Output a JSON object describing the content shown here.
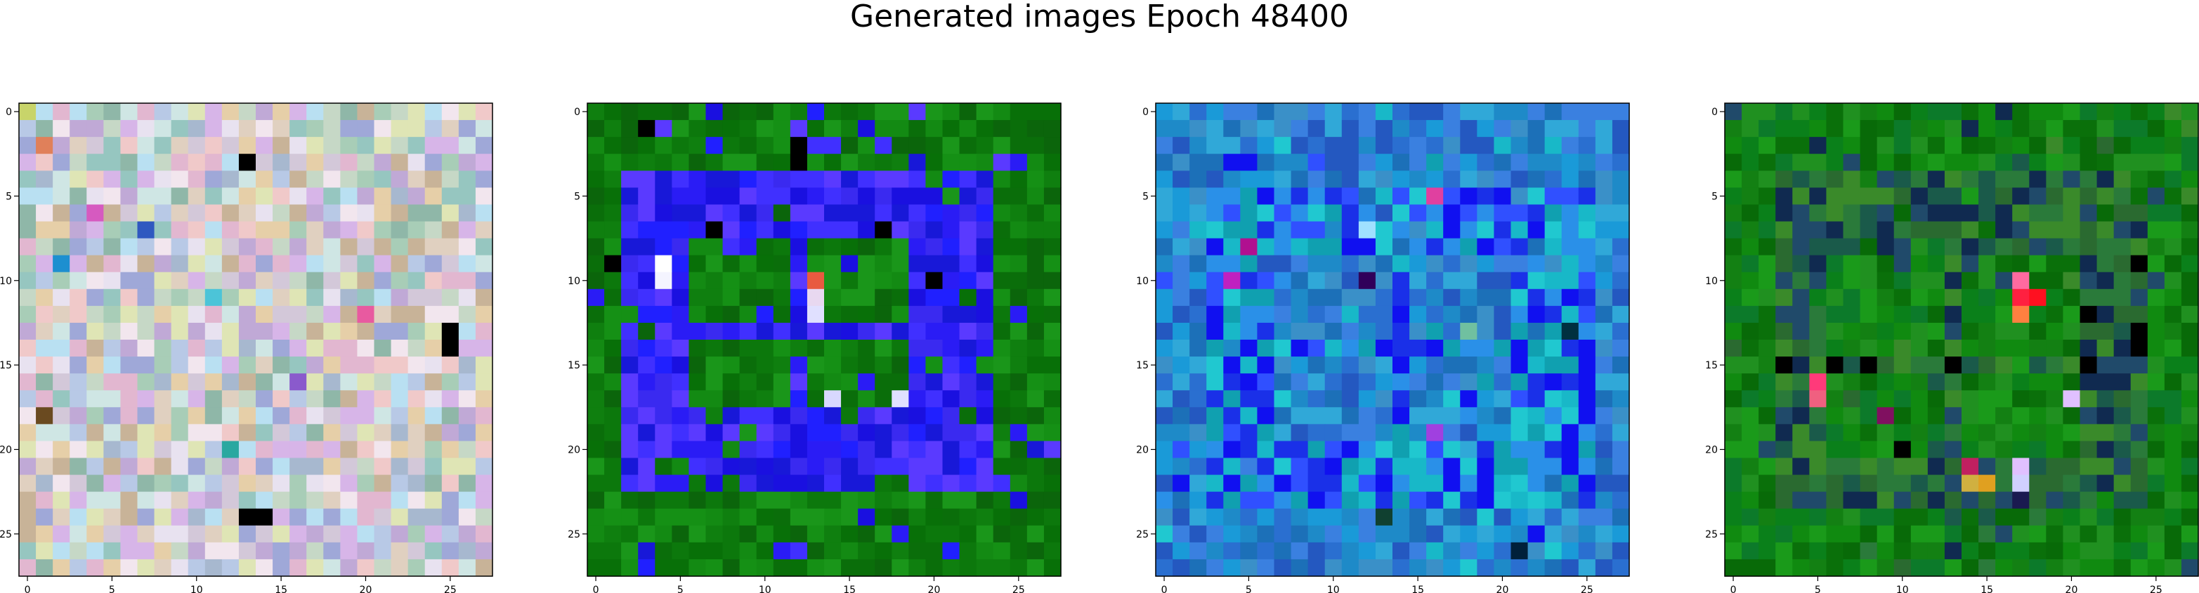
{
  "title": "Generated images Epoch 48400",
  "chart_data": [
    {
      "type": "heatmap",
      "description_free": true,
      "grid": false,
      "xlim": [
        0,
        27
      ],
      "ylim": [
        0,
        27
      ],
      "xticks": [
        0,
        5,
        10,
        15,
        20,
        25
      ],
      "yticks": [
        0,
        5,
        10,
        15,
        20,
        25
      ],
      "palette": [
        "#d3c8d9",
        "#c6d8c6",
        "#e0d0c0",
        "#b8c9e6",
        "#e2b7d0",
        "#cfe6e4",
        "#a8cdb7",
        "#e8e2f0",
        "#c0a9d6",
        "#dfe5b5",
        "#a7b8cf",
        "#f0c9c9",
        "#96c6c0",
        "#d7b5e8",
        "#b9e0f2",
        "#e6cfa8",
        "#8fb7a8",
        "#f2e6ee",
        "#c8b398",
        "#9fa8d8"
      ],
      "accents": [
        {
          "r": 0,
          "c": 0,
          "color": "#c8d46a"
        },
        {
          "r": 3,
          "c": 13,
          "color": "#000000"
        },
        {
          "r": 14,
          "c": 25,
          "color": "#000000"
        },
        {
          "r": 13,
          "c": 25,
          "color": "#000000"
        },
        {
          "r": 24,
          "c": 13,
          "color": "#000000"
        },
        {
          "r": 24,
          "c": 14,
          "color": "#000000"
        },
        {
          "r": 7,
          "c": 7,
          "color": "#2f58c0"
        },
        {
          "r": 9,
          "c": 2,
          "color": "#1d8fd0"
        },
        {
          "r": 6,
          "c": 4,
          "color": "#d65ac0"
        },
        {
          "r": 12,
          "c": 20,
          "color": "#e85aa0"
        },
        {
          "r": 18,
          "c": 1,
          "color": "#6a4a20"
        },
        {
          "r": 2,
          "c": 1,
          "color": "#e0805a"
        },
        {
          "r": 16,
          "c": 16,
          "color": "#8a5acc"
        },
        {
          "r": 11,
          "c": 11,
          "color": "#4cc4d8"
        },
        {
          "r": 20,
          "c": 12,
          "color": "#2aa8a0"
        }
      ]
    },
    {
      "type": "heatmap",
      "grid": false,
      "xlim": [
        0,
        27
      ],
      "ylim": [
        0,
        27
      ],
      "xticks": [
        0,
        5,
        10,
        15,
        20,
        25
      ],
      "yticks": [
        0,
        5,
        10,
        15,
        20,
        25
      ],
      "background": [
        "#0f7f0f",
        "#138a13",
        "#0a6e0a",
        "#1a961a",
        "#0c780c",
        "#087008",
        "#159015",
        "#0b650b"
      ],
      "foreground": [
        "#2020ff",
        "#3a2af0",
        "#1a10e0",
        "#4030ff",
        "#2a1cf5",
        "#5a3aff",
        "#1818d8"
      ],
      "frame_rows": [
        4,
        22
      ],
      "frame_cols": [
        2,
        23
      ],
      "hole_rows": [
        8,
        17
      ],
      "hole_cols": [
        6,
        18
      ],
      "accents": [
        {
          "r": 1,
          "c": 3,
          "color": "#000000"
        },
        {
          "r": 2,
          "c": 12,
          "color": "#000000"
        },
        {
          "r": 3,
          "c": 12,
          "color": "#000000"
        },
        {
          "r": 9,
          "c": 4,
          "color": "#ffffff"
        },
        {
          "r": 10,
          "c": 4,
          "color": "#f4f4ff"
        },
        {
          "r": 10,
          "c": 13,
          "color": "#e85a40"
        },
        {
          "r": 11,
          "c": 13,
          "color": "#e8d8f0"
        },
        {
          "r": 12,
          "c": 13,
          "color": "#e0e0ff"
        },
        {
          "r": 17,
          "c": 14,
          "color": "#d8d8ff"
        },
        {
          "r": 17,
          "c": 18,
          "color": "#e0e0ff"
        },
        {
          "r": 7,
          "c": 7,
          "color": "#000000"
        },
        {
          "r": 7,
          "c": 17,
          "color": "#000000"
        },
        {
          "r": 10,
          "c": 20,
          "color": "#000000"
        },
        {
          "r": 9,
          "c": 1,
          "color": "#000000"
        }
      ]
    },
    {
      "type": "heatmap",
      "grid": false,
      "xlim": [
        0,
        27
      ],
      "ylim": [
        0,
        27
      ],
      "xticks": [
        0,
        5,
        10,
        15,
        20,
        25
      ],
      "yticks": [
        0,
        5,
        10,
        15,
        20,
        25
      ],
      "background": [
        "#2a6fd0",
        "#1e8ac8",
        "#3a80e0",
        "#1a9ad8",
        "#2458c0",
        "#30a8d8",
        "#1c70b8",
        "#3a90c8"
      ],
      "foreground": [
        "#1010f0",
        "#18b8c8",
        "#20c8d0",
        "#1a30e8",
        "#2a90e8",
        "#10a0b0",
        "#3050ff"
      ],
      "frame_rows": [
        5,
        23
      ],
      "frame_cols": [
        3,
        25
      ],
      "hole_rows": [
        9,
        19
      ],
      "hole_cols": [
        7,
        20
      ],
      "accents": [
        {
          "r": 8,
          "c": 5,
          "color": "#b01090"
        },
        {
          "r": 10,
          "c": 4,
          "color": "#c020c0"
        },
        {
          "r": 5,
          "c": 16,
          "color": "#e040a0"
        },
        {
          "r": 19,
          "c": 16,
          "color": "#a040e0"
        },
        {
          "r": 13,
          "c": 18,
          "color": "#70c0a0"
        },
        {
          "r": 10,
          "c": 12,
          "color": "#30005a"
        },
        {
          "r": 24,
          "c": 13,
          "color": "#104030"
        },
        {
          "r": 26,
          "c": 21,
          "color": "#00203a"
        },
        {
          "r": 7,
          "c": 12,
          "color": "#a0e0ff"
        },
        {
          "r": 13,
          "c": 24,
          "color": "#003040"
        }
      ]
    },
    {
      "type": "heatmap",
      "grid": false,
      "xlim": [
        0,
        27
      ],
      "ylim": [
        0,
        27
      ],
      "xticks": [
        0,
        5,
        10,
        15,
        20,
        25
      ],
      "yticks": [
        0,
        5,
        10,
        15,
        20,
        25
      ],
      "background": [
        "#108a10",
        "#0a700a",
        "#1a9a1a",
        "#0c7a2a",
        "#138013",
        "#086a08",
        "#209020",
        "#0a801a"
      ],
      "foreground": [
        "#2a7a3a",
        "#1a5a4a",
        "#3a8a2a",
        "#204a6a",
        "#2a6a30",
        "#102a50"
      ],
      "frame_rows": [
        4,
        23
      ],
      "frame_cols": [
        3,
        24
      ],
      "hole_rows": [
        9,
        20
      ],
      "hole_cols": [
        6,
        20
      ],
      "accents": [
        {
          "r": 10,
          "c": 17,
          "color": "#ff6aa0"
        },
        {
          "r": 11,
          "c": 17,
          "color": "#ff2040"
        },
        {
          "r": 11,
          "c": 18,
          "color": "#ff1020"
        },
        {
          "r": 12,
          "c": 17,
          "color": "#ff8040"
        },
        {
          "r": 16,
          "c": 5,
          "color": "#ff3a7a"
        },
        {
          "r": 17,
          "c": 5,
          "color": "#f06080"
        },
        {
          "r": 22,
          "c": 15,
          "color": "#e0a020"
        },
        {
          "r": 21,
          "c": 14,
          "color": "#c02060"
        },
        {
          "r": 22,
          "c": 14,
          "color": "#d0b040"
        },
        {
          "r": 21,
          "c": 17,
          "color": "#e0c0ff"
        },
        {
          "r": 22,
          "c": 17,
          "color": "#d0d0ff"
        },
        {
          "r": 17,
          "c": 20,
          "color": "#e0c0ff"
        },
        {
          "r": 15,
          "c": 3,
          "color": "#000000"
        },
        {
          "r": 15,
          "c": 6,
          "color": "#000000"
        },
        {
          "r": 15,
          "c": 8,
          "color": "#000000"
        },
        {
          "r": 15,
          "c": 13,
          "color": "#000000"
        },
        {
          "r": 20,
          "c": 10,
          "color": "#000000"
        },
        {
          "r": 12,
          "c": 21,
          "color": "#000000"
        },
        {
          "r": 13,
          "c": 24,
          "color": "#000000"
        },
        {
          "r": 14,
          "c": 24,
          "color": "#000000"
        },
        {
          "r": 15,
          "c": 21,
          "color": "#000000"
        },
        {
          "r": 9,
          "c": 24,
          "color": "#000000"
        },
        {
          "r": 23,
          "c": 17,
          "color": "#1a1a50"
        },
        {
          "r": 18,
          "c": 9,
          "color": "#801060"
        }
      ]
    }
  ]
}
